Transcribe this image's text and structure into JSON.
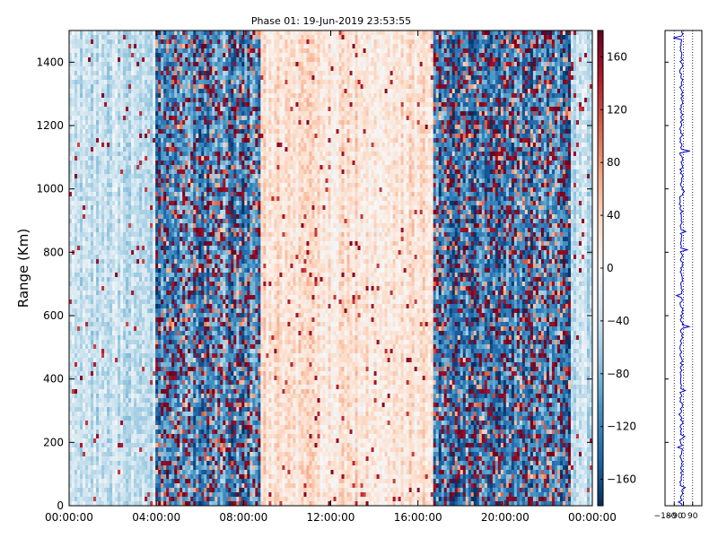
{
  "chart_data": [
    {
      "type": "heatmap",
      "title": "Phase 01: 19-Jun-2019 23:53:55",
      "xlabel": "",
      "ylabel": "Range (Km)",
      "xlim": [
        "00:00:00",
        "00:00:00"
      ],
      "ylim": [
        0,
        1500
      ],
      "x_ticks": [
        "00:00:00",
        "04:00:00",
        "08:00:00",
        "12:00:00",
        "16:00:00",
        "20:00:00",
        "00:00:00"
      ],
      "y_ticks": [
        0,
        200,
        400,
        600,
        800,
        1000,
        1200,
        1400
      ],
      "colorbar": {
        "colormap": "RdBu_r",
        "range": [
          -180,
          180
        ],
        "ticks": [
          -160,
          -120,
          -80,
          -40,
          0,
          40,
          80,
          120,
          160
        ],
        "colors": {
          "low": "#08306b",
          "mid": "#f7f7f7",
          "high": "#67001f"
        }
      },
      "column_profile": [
        {
          "from": "00:00:00",
          "to": "04:00:00",
          "mean_phase": -40
        },
        {
          "from": "04:00:00",
          "to": "08:30:00",
          "mean_phase": -110,
          "note": "strong mixed noise"
        },
        {
          "from": "09:00:00",
          "to": "16:30:00",
          "mean_phase": 25
        },
        {
          "from": "17:00:00",
          "to": "23:00:00",
          "mean_phase": -120,
          "note": "strong mixed noise"
        },
        {
          "from": "23:00:00",
          "to": "00:00:00",
          "mean_phase": -40
        }
      ]
    },
    {
      "type": "line",
      "title": "",
      "x_ticks": [
        "-180",
        "-90",
        "0",
        "90"
      ],
      "xlim": [
        -180,
        180
      ],
      "ylim": [
        0,
        1500
      ],
      "color": "#0000cc"
    }
  ]
}
